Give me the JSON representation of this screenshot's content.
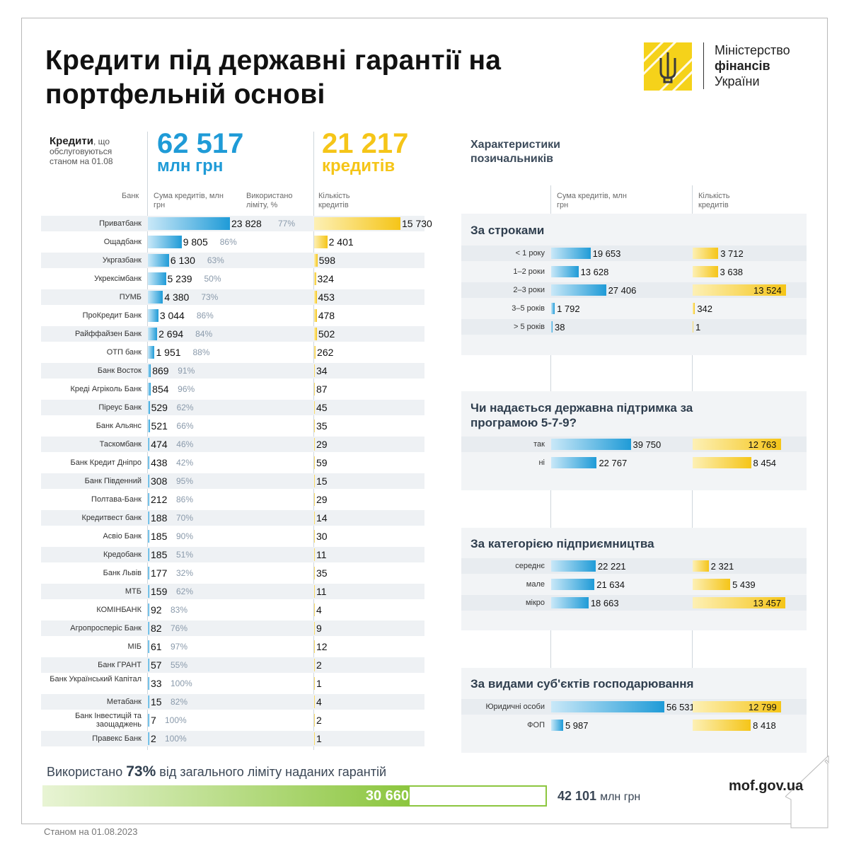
{
  "title": "Кредити під державні гарантії на портфельній основі",
  "logo": {
    "line1": "Міністерство",
    "line2": "фінансів",
    "line3": "України"
  },
  "kpi": {
    "label_bold": "Кредити",
    "label_rest": ", що обслуговуються станом на 01.08",
    "amount": "62 517",
    "amount_unit": "млн грн",
    "count": "21 217",
    "count_unit": "кредитів"
  },
  "table_headers": {
    "bank": "Банк",
    "amount": "Сума кредитів, млн грн",
    "used": "Використано ліміту, %",
    "count": "Кількість кредитів"
  },
  "panel_title": "Характеристики позичальників",
  "panel_headers": {
    "amount": "Сума кредитів, млн грн",
    "count": "Кількість кредитів"
  },
  "usage": {
    "prefix": "Використано",
    "percent": "73%",
    "suffix": "від загального ліміту наданих гарантій",
    "used": "30 660",
    "total": "42 101",
    "total_unit": "млн грн"
  },
  "site": "mof.gov.ua",
  "footer": "Станом на 01.08.2023",
  "colors": {
    "blue": "#1f9bd7",
    "yellow": "#f5c518",
    "green": "#8cc63f"
  },
  "chart_data": [
    {
      "type": "bar",
      "title": "Кредити під державні гарантії на портфельній основі",
      "categories": [
        "Приватбанк",
        "Ощадбанк",
        "Укргазбанк",
        "Укрексімбанк",
        "ПУМБ",
        "ПроКредит Банк",
        "Райффайзен Банк",
        "ОТП банк",
        "Банк Восток",
        "Креді Агріколь Банк",
        "Піреус Банк",
        "Банк Альянс",
        "Таскомбанк",
        "Банк Кредит Дніпро",
        "Банк Південний",
        "Полтава-Банк",
        "Кредитвест банк",
        "Асвіо Банк",
        "Кредобанк",
        "Банк Львів",
        "МТБ",
        "КОМІНБАНК",
        "Агропросперіс Банк",
        "МІБ",
        "Банк ГРАНТ",
        "Банк Український Капітал",
        "Метабанк",
        "Банк Інвестицій та заощаджень",
        "Правекс Банк"
      ],
      "series": [
        {
          "name": "Сума кредитів, млн грн",
          "values": [
            23828,
            9805,
            6130,
            5239,
            4380,
            3044,
            2694,
            1951,
            869,
            854,
            529,
            521,
            474,
            438,
            308,
            212,
            188,
            185,
            185,
            177,
            159,
            92,
            82,
            61,
            57,
            33,
            15,
            7,
            2
          ],
          "labels": [
            "23 828",
            "9 805",
            "6 130",
            "5 239",
            "4 380",
            "3 044",
            "2 694",
            "1 951",
            "869",
            "854",
            "529",
            "521",
            "474",
            "438",
            "308",
            "212",
            "188",
            "185",
            "185",
            "177",
            "159",
            "92",
            "82",
            "61",
            "57",
            "33",
            "15",
            "7",
            "2"
          ]
        },
        {
          "name": "Використано ліміту, %",
          "values": [
            "77%",
            "86%",
            "63%",
            "50%",
            "73%",
            "86%",
            "84%",
            "88%",
            "91%",
            "96%",
            "62%",
            "66%",
            "46%",
            "42%",
            "95%",
            "86%",
            "70%",
            "90%",
            "51%",
            "32%",
            "62%",
            "83%",
            "76%",
            "97%",
            "55%",
            "100%",
            "82%",
            "100%",
            "100%"
          ]
        },
        {
          "name": "Кількість кредитів",
          "values": [
            15730,
            2401,
            598,
            324,
            453,
            478,
            502,
            262,
            34,
            87,
            45,
            35,
            29,
            59,
            15,
            29,
            14,
            30,
            11,
            35,
            11,
            4,
            9,
            12,
            2,
            1,
            4,
            2,
            1
          ],
          "labels": [
            "15 730",
            "2 401",
            "598",
            "324",
            "453",
            "478",
            "502",
            "262",
            "34",
            "87",
            "45",
            "35",
            "29",
            "59",
            "15",
            "29",
            "14",
            "30",
            "11",
            "35",
            "11",
            "4",
            "9",
            "12",
            "2",
            "1",
            "4",
            "2",
            "1"
          ]
        }
      ]
    },
    {
      "type": "bar",
      "title": "За строками",
      "categories": [
        "< 1 року",
        "1–2 роки",
        "2–3 роки",
        "3–5 років",
        "> 5 років"
      ],
      "series": [
        {
          "name": "Сума кредитів, млн грн",
          "values": [
            19653,
            13628,
            27406,
            1792,
            38
          ],
          "labels": [
            "19 653",
            "13 628",
            "27 406",
            "1 792",
            "38"
          ]
        },
        {
          "name": "Кількість кредитів",
          "values": [
            3712,
            3638,
            13524,
            342,
            1
          ],
          "labels": [
            "3 712",
            "3 638",
            "13 524",
            "342",
            "1"
          ]
        }
      ]
    },
    {
      "type": "bar",
      "title": "Чи надається державна підтримка за програмою 5-7-9?",
      "categories": [
        "так",
        "ні"
      ],
      "series": [
        {
          "name": "Сума кредитів, млн грн",
          "values": [
            39750,
            22767
          ],
          "labels": [
            "39 750",
            "22 767"
          ]
        },
        {
          "name": "Кількість кредитів",
          "values": [
            12763,
            8454
          ],
          "labels": [
            "12 763",
            "8 454"
          ]
        }
      ]
    },
    {
      "type": "bar",
      "title": "За категорією підприємництва",
      "categories": [
        "середнє",
        "мале",
        "мікро"
      ],
      "series": [
        {
          "name": "Сума кредитів, млн грн",
          "values": [
            22221,
            21634,
            18663
          ],
          "labels": [
            "22 221",
            "21 634",
            "18 663"
          ]
        },
        {
          "name": "Кількість кредитів",
          "values": [
            2321,
            5439,
            13457
          ],
          "labels": [
            "2 321",
            "5 439",
            "13 457"
          ]
        }
      ]
    },
    {
      "type": "bar",
      "title": "За видами суб'єктів господарювання",
      "categories": [
        "Юридичні особи",
        "ФОП"
      ],
      "series": [
        {
          "name": "Сума кредитів, млн грн",
          "values": [
            56531,
            5987
          ],
          "labels": [
            "56 531",
            "5 987"
          ]
        },
        {
          "name": "Кількість кредитів",
          "values": [
            12799,
            8418
          ],
          "labels": [
            "12 799",
            "8 418"
          ]
        }
      ]
    }
  ]
}
